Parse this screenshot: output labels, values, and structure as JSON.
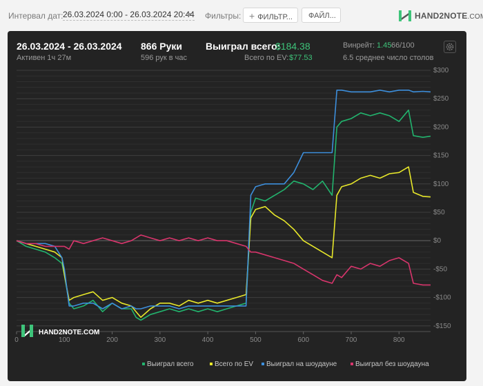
{
  "toolbar": {
    "interval_label": "Интервал дат:",
    "interval_value": "26.03.2024 0:00 - 26.03.2024 20:44",
    "filters_label": "Фильтры:",
    "filter_button": "ФИЛЬТР...",
    "file_button": "ФАЙЛ...",
    "logo_text": "HAND2NOTE",
    "logo_suffix": ".COM"
  },
  "summary": {
    "date_range": "26.03.2024 - 26.03.2024",
    "active": "Активен 1ч 27м",
    "hands": "866 Руки",
    "hands_rate": "596 рук в час",
    "won_label": "Выиграл всего:",
    "won_value": "$184.38",
    "ev_label": "Всего по EV:",
    "ev_value": "$77.53",
    "winrate_label": "Винрейт:",
    "winrate_value": "1.45",
    "winrate_unit": "66/100",
    "avg_tables": "6.5 среднее число столов"
  },
  "watermark": "HAND2NOTE.COM",
  "colors": {
    "background": "#f3f3f3",
    "panel": "#232323",
    "accent_green": "#3ec47a",
    "won": "#22b46e",
    "ev": "#e8e82a",
    "showdown": "#3d8fdc",
    "no_showdown": "#d8356c"
  },
  "chart_data": {
    "type": "line",
    "xlim": [
      0,
      866
    ],
    "ylim": [
      -160,
      300
    ],
    "x_ticks": [
      0,
      100,
      200,
      300,
      400,
      500,
      600,
      700,
      800
    ],
    "y_ticks": [
      {
        "v": 300,
        "label": "$300"
      },
      {
        "v": 250,
        "label": "$250"
      },
      {
        "v": 200,
        "label": "$200"
      },
      {
        "v": 150,
        "label": "$150"
      },
      {
        "v": 100,
        "label": "$100"
      },
      {
        "v": 50,
        "label": "$50"
      },
      {
        "v": 0,
        "label": "$0"
      },
      {
        "v": -50,
        "label": "-$50"
      },
      {
        "v": -100,
        "label": "-$100"
      },
      {
        "v": -150,
        "label": "-$150"
      }
    ],
    "grid": true,
    "legend_position": "bottom",
    "series": [
      {
        "name": "Выиграл всего",
        "color": "#22b46e",
        "x": [
          0,
          20,
          40,
          60,
          80,
          95,
          100,
          110,
          120,
          140,
          160,
          180,
          200,
          220,
          240,
          250,
          260,
          280,
          300,
          320,
          340,
          360,
          380,
          400,
          420,
          440,
          460,
          480,
          490,
          500,
          520,
          540,
          560,
          580,
          600,
          620,
          640,
          660,
          670,
          680,
          700,
          720,
          740,
          760,
          780,
          800,
          820,
          830,
          850,
          866
        ],
        "y": [
          0,
          -10,
          -15,
          -20,
          -30,
          -40,
          -60,
          -110,
          -120,
          -115,
          -105,
          -125,
          -110,
          -120,
          -120,
          -135,
          -140,
          -130,
          -125,
          -120,
          -125,
          -120,
          -125,
          -120,
          -125,
          -120,
          -115,
          -110,
          50,
          75,
          70,
          80,
          90,
          105,
          100,
          90,
          105,
          80,
          200,
          210,
          215,
          225,
          220,
          225,
          220,
          210,
          230,
          185,
          182,
          184
        ]
      },
      {
        "name": "Всего по EV",
        "color": "#e8e82a",
        "x": [
          0,
          20,
          40,
          60,
          80,
          95,
          100,
          110,
          120,
          140,
          160,
          180,
          200,
          220,
          240,
          250,
          260,
          280,
          300,
          320,
          340,
          360,
          380,
          400,
          420,
          440,
          460,
          480,
          490,
          500,
          520,
          540,
          560,
          580,
          600,
          620,
          640,
          660,
          670,
          680,
          700,
          720,
          740,
          760,
          780,
          800,
          820,
          830,
          850,
          866
        ],
        "y": [
          0,
          -5,
          -10,
          -15,
          -20,
          -30,
          -60,
          -105,
          -100,
          -95,
          -90,
          -105,
          -100,
          -110,
          -115,
          -125,
          -135,
          -120,
          -110,
          -110,
          -115,
          -105,
          -110,
          -105,
          -110,
          -105,
          -100,
          -95,
          40,
          55,
          60,
          45,
          35,
          20,
          0,
          -10,
          -20,
          -30,
          80,
          95,
          100,
          110,
          115,
          110,
          118,
          120,
          130,
          85,
          78,
          77
        ]
      },
      {
        "name": "Выиграл на шоудауне",
        "color": "#3d8fdc",
        "x": [
          0,
          20,
          40,
          60,
          80,
          95,
          100,
          110,
          120,
          140,
          160,
          180,
          200,
          220,
          240,
          250,
          260,
          280,
          300,
          320,
          340,
          360,
          380,
          400,
          420,
          440,
          460,
          480,
          490,
          500,
          520,
          540,
          560,
          580,
          600,
          620,
          640,
          660,
          670,
          680,
          700,
          720,
          740,
          760,
          780,
          800,
          820,
          830,
          850,
          866
        ],
        "y": [
          0,
          -5,
          -5,
          -5,
          -10,
          -30,
          -50,
          -115,
          -115,
          -110,
          -110,
          -120,
          -110,
          -120,
          -115,
          -120,
          -120,
          -115,
          -115,
          -115,
          -120,
          -115,
          -115,
          -115,
          -115,
          -115,
          -115,
          -115,
          80,
          95,
          100,
          100,
          100,
          120,
          155,
          155,
          155,
          155,
          265,
          265,
          262,
          262,
          262,
          265,
          262,
          265,
          265,
          262,
          263,
          262
        ]
      },
      {
        "name": "Выиграл без шоудауна",
        "color": "#d8356c",
        "x": [
          0,
          20,
          40,
          60,
          80,
          95,
          100,
          110,
          120,
          140,
          160,
          180,
          200,
          220,
          240,
          250,
          260,
          280,
          300,
          320,
          340,
          360,
          380,
          400,
          420,
          440,
          460,
          480,
          490,
          500,
          520,
          540,
          560,
          580,
          600,
          620,
          640,
          660,
          670,
          680,
          700,
          720,
          740,
          760,
          780,
          800,
          820,
          830,
          850,
          866
        ],
        "y": [
          0,
          -5,
          -5,
          -10,
          -10,
          -10,
          -10,
          -15,
          0,
          -5,
          0,
          5,
          0,
          -5,
          0,
          5,
          10,
          5,
          0,
          5,
          0,
          5,
          0,
          5,
          0,
          0,
          -5,
          -10,
          -20,
          -20,
          -25,
          -30,
          -35,
          -40,
          -50,
          -60,
          -70,
          -75,
          -60,
          -65,
          -45,
          -50,
          -40,
          -45,
          -35,
          -30,
          -40,
          -75,
          -78,
          -78
        ]
      }
    ]
  }
}
